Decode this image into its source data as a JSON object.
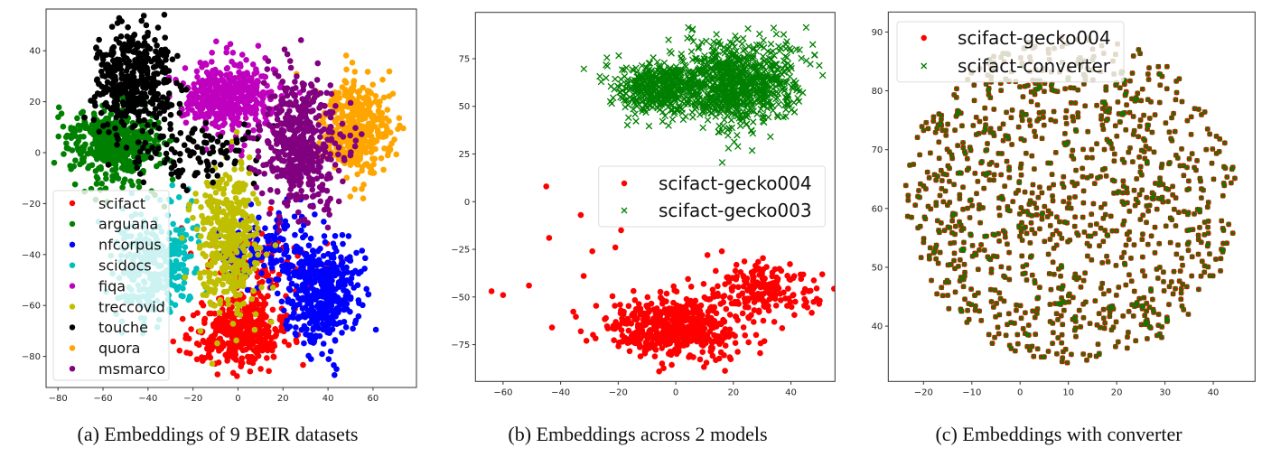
{
  "chart_data": [
    {
      "type": "scatter",
      "caption": "(a) Embeddings of 9 BEIR datasets",
      "xlim": [
        -85.3,
        79.3
      ],
      "ylim": [
        -92.2,
        56.4
      ],
      "xticks": [
        -80,
        -60,
        -40,
        -20,
        0,
        20,
        40,
        60
      ],
      "yticks": [
        -80,
        -60,
        -40,
        -20,
        0,
        20,
        40
      ],
      "grid": false,
      "legend_position": "lower-left",
      "series": [
        {
          "name": "scifact",
          "color": "#ff0000",
          "marker": "circle",
          "clusters": [
            {
              "center": [
                0,
                -70
              ],
              "spread": [
                10,
                7
              ],
              "n": 420
            },
            {
              "center": [
                12,
                -45
              ],
              "spread": [
                12,
                9
              ],
              "n": 120
            }
          ]
        },
        {
          "name": "arguana",
          "color": "#008000",
          "marker": "circle",
          "clusters": [
            {
              "center": [
                -55,
                3
              ],
              "spread": [
                11,
                8
              ],
              "n": 450
            }
          ]
        },
        {
          "name": "nfcorpus",
          "color": "#0000ff",
          "marker": "circle",
          "clusters": [
            {
              "center": [
                38,
                -55
              ],
              "spread": [
                8,
                10
              ],
              "n": 420
            },
            {
              "center": [
                15,
                -38
              ],
              "spread": [
                12,
                8
              ],
              "n": 150
            }
          ]
        },
        {
          "name": "scidocs",
          "color": "#00bfbf",
          "marker": "circle",
          "clusters": [
            {
              "center": [
                -40,
                -45
              ],
              "spread": [
                8,
                11
              ],
              "n": 260
            },
            {
              "center": [
                -25,
                -40
              ],
              "spread": [
                4,
                10
              ],
              "n": 60
            }
          ]
        },
        {
          "name": "fiqa",
          "color": "#bf00bf",
          "marker": "circle",
          "clusters": [
            {
              "center": [
                -5,
                22
              ],
              "spread": [
                10,
                7
              ],
              "n": 450
            }
          ]
        },
        {
          "name": "treccovid",
          "color": "#bfbf00",
          "marker": "circle",
          "clusters": [
            {
              "center": [
                -4,
                -35
              ],
              "spread": [
                7,
                14
              ],
              "n": 380
            }
          ]
        },
        {
          "name": "touche",
          "color": "#000000",
          "marker": "circle",
          "clusters": [
            {
              "center": [
                -46,
                28
              ],
              "spread": [
                9,
                10
              ],
              "n": 420
            },
            {
              "center": [
                -20,
                0
              ],
              "spread": [
                14,
                6
              ],
              "n": 110
            }
          ]
        },
        {
          "name": "quora",
          "color": "#ffa500",
          "marker": "circle",
          "clusters": [
            {
              "center": [
                52,
                10
              ],
              "spread": [
                8,
                9
              ],
              "n": 420
            }
          ]
        },
        {
          "name": "msmarco",
          "color": "#800080",
          "marker": "circle",
          "clusters": [
            {
              "center": [
                27,
                2
              ],
              "spread": [
                9,
                13
              ],
              "n": 460
            }
          ]
        }
      ]
    },
    {
      "type": "scatter",
      "caption": "(b) Embeddings across 2 models",
      "xlim": [
        -69.6,
        55.3
      ],
      "ylim": [
        -94.3,
        99.3
      ],
      "xticks": [
        -60,
        -40,
        -20,
        0,
        20,
        40
      ],
      "yticks": [
        -75,
        -50,
        -25,
        0,
        25,
        50,
        75
      ],
      "grid": false,
      "legend_position": "center-right",
      "series": [
        {
          "name": "scifact-gecko004",
          "color": "#ff0000",
          "marker": "circle",
          "clusters": [
            {
              "center": [
                0,
                -66
              ],
              "spread": [
                11,
                8
              ],
              "n": 520
            },
            {
              "center": [
                30,
                -46
              ],
              "spread": [
                9,
                7
              ],
              "n": 200
            }
          ],
          "points": [
            [
              -64,
              -47
            ],
            [
              -60,
              -49
            ],
            [
              -51,
              -44
            ],
            [
              -45,
              8
            ],
            [
              -44,
              -19
            ],
            [
              -43,
              -66
            ],
            [
              -33,
              -7
            ],
            [
              -33,
              -68
            ],
            [
              -32,
              -39
            ],
            [
              -29,
              -26
            ],
            [
              -19,
              -15
            ],
            [
              49,
              -51
            ],
            [
              16,
              -26
            ],
            [
              11,
              -28
            ],
            [
              -21,
              -24
            ]
          ]
        },
        {
          "name": "scifact-gecko003",
          "color": "#008000",
          "marker": "x",
          "clusters": [
            {
              "center": [
                -5,
                60
              ],
              "spread": [
                8,
                7
              ],
              "n": 450
            },
            {
              "center": [
                22,
                62
              ],
              "spread": [
                10,
                11
              ],
              "n": 800
            }
          ]
        }
      ]
    },
    {
      "type": "scatter",
      "caption": "(c) Embeddings with converter",
      "xlim": [
        -27.3,
        48.65
      ],
      "ylim": [
        30.6,
        93.4
      ],
      "xticks": [
        -20,
        -10,
        0,
        10,
        20,
        30,
        40
      ],
      "yticks": [
        40,
        50,
        60,
        70,
        80,
        90
      ],
      "grid": false,
      "legend_position": "upper-left",
      "series": [
        {
          "name": "scifact-gecko004",
          "color": "#ff0000",
          "marker": "circle"
        },
        {
          "name": "scifact-converter",
          "color": "#008000",
          "marker": "x"
        }
      ],
      "shared_points_region": {
        "center": [
          10.5,
          61.5
        ],
        "radius": [
          34.5,
          28
        ],
        "n": 1100
      }
    }
  ]
}
